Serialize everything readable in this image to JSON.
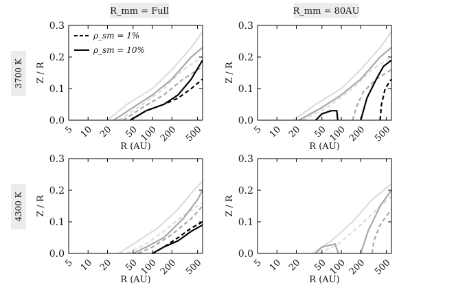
{
  "figure": {
    "col_headers": [
      "R_mm = Full",
      "R_mm = 80AU"
    ],
    "row_labels": [
      "3700 K",
      "4300 K"
    ],
    "legend": [
      {
        "label": "ρ_sm = 1%",
        "style": "dashed"
      },
      {
        "label": "ρ_sm = 10%",
        "style": "solid"
      }
    ]
  },
  "chart_data": [
    {
      "type": "line",
      "row": "3700 K",
      "col": "R_mm = Full",
      "xlabel": "R (AU)",
      "ylabel": "Z / R",
      "xscale": "log",
      "xlim": [
        5,
        600
      ],
      "ylim": [
        0,
        0.3
      ],
      "xticks": [
        5,
        10,
        20,
        50,
        100,
        200,
        500
      ],
      "yticks": [
        0.0,
        0.1,
        0.2,
        0.3
      ],
      "series": [
        {
          "name": "lightest solid",
          "color": "#dcdcdc",
          "style": "solid",
          "points": [
            [
              20,
              0
            ],
            [
              40,
              0.05
            ],
            [
              100,
              0.1
            ],
            [
              200,
              0.16
            ],
            [
              400,
              0.23
            ],
            [
              600,
              0.28
            ]
          ]
        },
        {
          "name": "lightest dashed",
          "color": "#dcdcdc",
          "style": "dashed",
          "points": [
            [
              30,
              0
            ],
            [
              60,
              0.04
            ],
            [
              150,
              0.1
            ],
            [
              300,
              0.16
            ],
            [
              600,
              0.2
            ]
          ]
        },
        {
          "name": "medium solid",
          "color": "#a8a8a8",
          "style": "solid",
          "points": [
            [
              25,
              0
            ],
            [
              50,
              0.04
            ],
            [
              100,
              0.08
            ],
            [
              200,
              0.13
            ],
            [
              400,
              0.2
            ],
            [
              600,
              0.23
            ]
          ]
        },
        {
          "name": "medium dashed",
          "color": "#a8a8a8",
          "style": "dashed",
          "points": [
            [
              35,
              0
            ],
            [
              70,
              0.04
            ],
            [
              150,
              0.08
            ],
            [
              300,
              0.13
            ],
            [
              600,
              0.17
            ]
          ]
        },
        {
          "name": "10% solid",
          "color": "#000000",
          "style": "solid",
          "points": [
            [
              45,
              0
            ],
            [
              80,
              0.03
            ],
            [
              150,
              0.05
            ],
            [
              250,
              0.08
            ],
            [
              400,
              0.13
            ],
            [
              600,
              0.19
            ]
          ]
        },
        {
          "name": "1% dashed",
          "color": "#000000",
          "style": "dashed",
          "points": [
            [
              45,
              0
            ],
            [
              80,
              0.03
            ],
            [
              150,
              0.05
            ],
            [
              250,
              0.07
            ],
            [
              400,
              0.1
            ],
            [
              600,
              0.13
            ]
          ]
        }
      ]
    },
    {
      "type": "line",
      "row": "3700 K",
      "col": "R_mm = 80AU",
      "xlabel": "R (AU)",
      "ylabel": "Z / R",
      "xscale": "log",
      "xlim": [
        5,
        600
      ],
      "ylim": [
        0,
        0.3
      ],
      "xticks": [
        5,
        10,
        20,
        50,
        100,
        200,
        500
      ],
      "yticks": [
        0.0,
        0.1,
        0.2,
        0.3
      ],
      "series": [
        {
          "name": "lightest solid",
          "color": "#dcdcdc",
          "style": "solid",
          "points": [
            [
              18,
              0
            ],
            [
              40,
              0.05
            ],
            [
              100,
              0.1
            ],
            [
              200,
              0.16
            ],
            [
              400,
              0.23
            ],
            [
              600,
              0.28
            ]
          ]
        },
        {
          "name": "lightest dashed",
          "color": "#dcdcdc",
          "style": "dashed",
          "points": [
            [
              25,
              0
            ],
            [
              60,
              0.04
            ],
            [
              150,
              0.1
            ],
            [
              300,
              0.16
            ],
            [
              600,
              0.2
            ]
          ]
        },
        {
          "name": "medium solid",
          "color": "#a8a8a8",
          "style": "solid",
          "points": [
            [
              22,
              0
            ],
            [
              50,
              0.04
            ],
            [
              100,
              0.08
            ],
            [
              200,
              0.13
            ],
            [
              400,
              0.2
            ],
            [
              600,
              0.23
            ]
          ]
        },
        {
          "name": "medium dashed",
          "color": "#a8a8a8",
          "style": "dashed",
          "points": [
            [
              150,
              0
            ],
            [
              170,
              0.04
            ],
            [
              220,
              0.09
            ],
            [
              350,
              0.13
            ],
            [
              600,
              0.16
            ]
          ]
        },
        {
          "name": "10% inner",
          "color": "#000000",
          "style": "solid",
          "points": [
            [
              40,
              0
            ],
            [
              50,
              0.02
            ],
            [
              70,
              0.03
            ],
            [
              85,
              0.03
            ],
            [
              88,
              0
            ]
          ]
        },
        {
          "name": "10% outer",
          "color": "#000000",
          "style": "solid",
          "points": [
            [
              200,
              0
            ],
            [
              250,
              0.07
            ],
            [
              350,
              0.13
            ],
            [
              450,
              0.17
            ],
            [
              600,
              0.19
            ]
          ]
        },
        {
          "name": "1% outer",
          "color": "#000000",
          "style": "dashed",
          "points": [
            [
              400,
              0
            ],
            [
              420,
              0.05
            ],
            [
              480,
              0.1
            ],
            [
              600,
              0.13
            ]
          ]
        }
      ]
    },
    {
      "type": "line",
      "row": "4300 K",
      "col": "R_mm = Full",
      "xlabel": "R (AU)",
      "ylabel": "Z / R",
      "xscale": "log",
      "xlim": [
        5,
        600
      ],
      "ylim": [
        0,
        0.3
      ],
      "xticks": [
        5,
        10,
        20,
        50,
        100,
        200,
        500
      ],
      "yticks": [
        0.0,
        0.1,
        0.2,
        0.3
      ],
      "series": [
        {
          "name": "lightest solid",
          "color": "#dcdcdc",
          "style": "solid",
          "points": [
            [
              30,
              0
            ],
            [
              60,
              0.04
            ],
            [
              120,
              0.08
            ],
            [
              250,
              0.14
            ],
            [
              400,
              0.19
            ],
            [
              600,
              0.23
            ]
          ]
        },
        {
          "name": "lightest dashed",
          "color": "#dcdcdc",
          "style": "dashed",
          "points": [
            [
              40,
              0
            ],
            [
              80,
              0.03
            ],
            [
              150,
              0.07
            ],
            [
              300,
              0.12
            ],
            [
              600,
              0.16
            ]
          ]
        },
        {
          "name": "medium solid",
          "color": "#a8a8a8",
          "style": "solid",
          "points": [
            [
              50,
              0
            ],
            [
              80,
              0.02
            ],
            [
              150,
              0.05
            ],
            [
              300,
              0.11
            ],
            [
              500,
              0.17
            ],
            [
              600,
              0.2
            ]
          ]
        },
        {
          "name": "medium dashed",
          "color": "#a8a8a8",
          "style": "dashed",
          "points": [
            [
              60,
              0
            ],
            [
              100,
              0.02
            ],
            [
              200,
              0.06
            ],
            [
              400,
              0.11
            ],
            [
              600,
              0.15
            ]
          ]
        },
        {
          "name": "10% solid",
          "color": "#000000",
          "style": "solid",
          "points": [
            [
              100,
              0
            ],
            [
              150,
              0.02
            ],
            [
              250,
              0.04
            ],
            [
              400,
              0.07
            ],
            [
              600,
              0.09
            ]
          ]
        },
        {
          "name": "1% dashed",
          "color": "#000000",
          "style": "dashed",
          "points": [
            [
              100,
              0
            ],
            [
              150,
              0.02
            ],
            [
              250,
              0.05
            ],
            [
              400,
              0.08
            ],
            [
              600,
              0.1
            ]
          ]
        }
      ]
    },
    {
      "type": "line",
      "row": "4300 K",
      "col": "R_mm = 80AU",
      "xlabel": "R (AU)",
      "ylabel": "Z / R",
      "xscale": "log",
      "xlim": [
        5,
        600
      ],
      "ylim": [
        0,
        0.3
      ],
      "xticks": [
        5,
        10,
        20,
        50,
        100,
        200,
        500
      ],
      "yticks": [
        0.0,
        0.1,
        0.2,
        0.3
      ],
      "series": [
        {
          "name": "lightest solid",
          "color": "#dcdcdc",
          "style": "solid",
          "points": [
            [
              35,
              0
            ],
            [
              70,
              0.04
            ],
            [
              150,
              0.1
            ],
            [
              300,
              0.17
            ],
            [
              600,
              0.22
            ]
          ]
        },
        {
          "name": "lightest dashed",
          "color": "#dcdcdc",
          "style": "dashed",
          "points": [
            [
              45,
              0
            ],
            [
              90,
              0.03
            ],
            [
              200,
              0.09
            ],
            [
              400,
              0.15
            ],
            [
              600,
              0.18
            ]
          ]
        },
        {
          "name": "medium inner",
          "color": "#a8a8a8",
          "style": "solid",
          "points": [
            [
              40,
              0
            ],
            [
              50,
              0.02
            ],
            [
              80,
              0.03
            ],
            [
              90,
              0
            ]
          ]
        },
        {
          "name": "medium outer",
          "color": "#a8a8a8",
          "style": "solid",
          "points": [
            [
              200,
              0
            ],
            [
              260,
              0.07
            ],
            [
              400,
              0.15
            ],
            [
              600,
              0.2
            ]
          ]
        },
        {
          "name": "medium dashed",
          "color": "#a8a8a8",
          "style": "dashed",
          "points": [
            [
              300,
              0
            ],
            [
              320,
              0.04
            ],
            [
              400,
              0.09
            ],
            [
              600,
              0.14
            ]
          ]
        }
      ]
    }
  ]
}
